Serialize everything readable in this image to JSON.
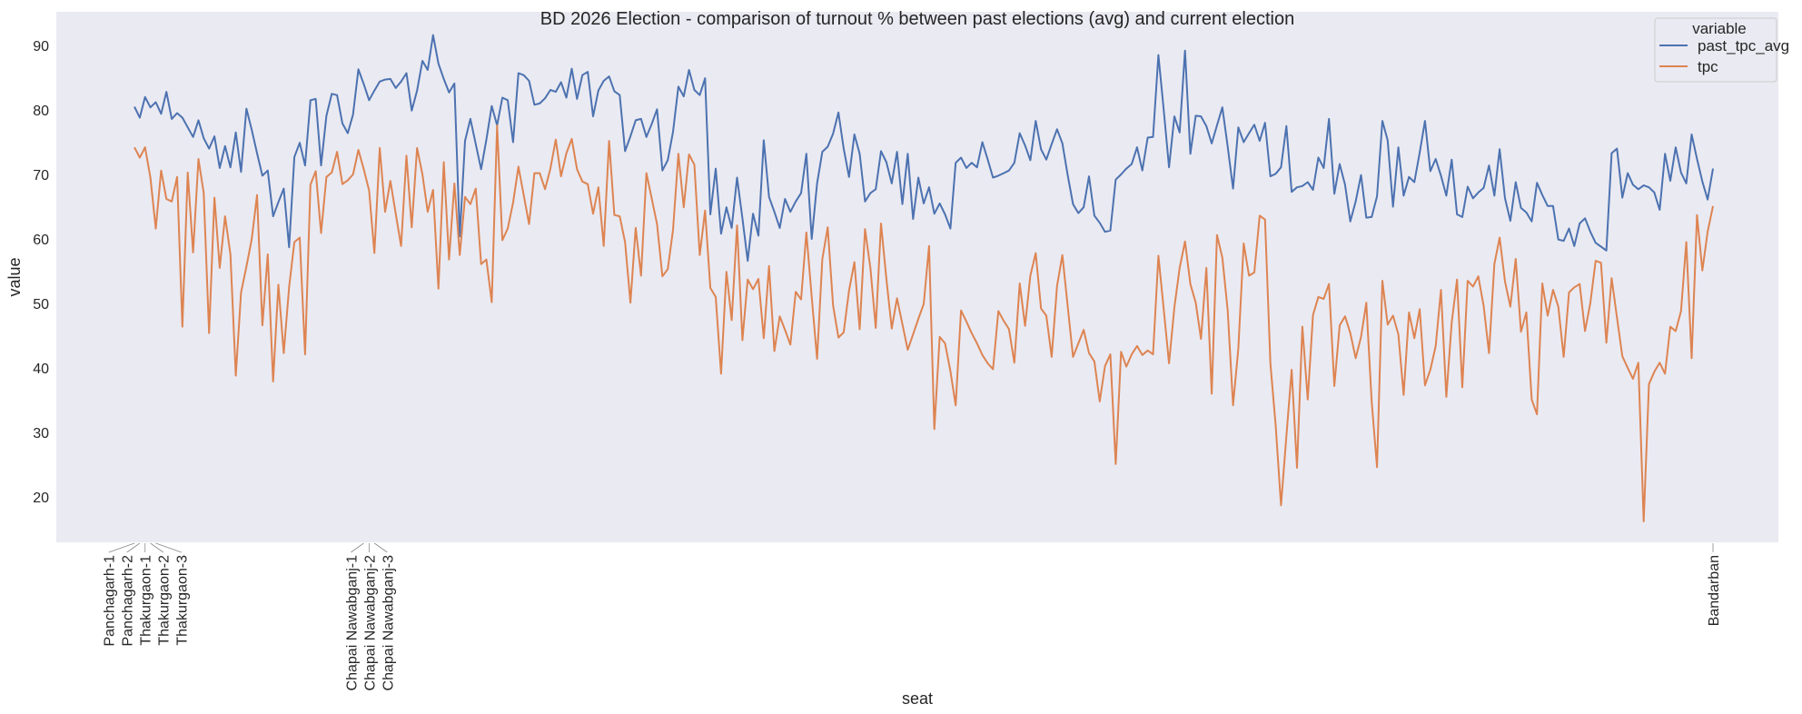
{
  "chart_data": {
    "type": "line",
    "title": "BD 2026 Election - comparison of turnout % between past elections (avg) and current election",
    "xlabel": "seat",
    "ylabel": "value",
    "ylim": [
      13,
      95
    ],
    "yticks": [
      20,
      30,
      40,
      50,
      60,
      70,
      80,
      90
    ],
    "grid": false,
    "background": "#eaeaf2",
    "legend": {
      "title": "variable",
      "placement": "top-right"
    },
    "readable_seat_labels": [
      {
        "index": 0,
        "label": "Panchagarh-1"
      },
      {
        "index": 1,
        "label": "Panchagarh-2"
      },
      {
        "index": 2,
        "label": "Thakurgaon-1"
      },
      {
        "index": 3,
        "label": "Thakurgaon-2"
      },
      {
        "index": 4,
        "label": "Thakurgaon-3"
      },
      {
        "index": 43,
        "label": "Chapai Nawabganj-1"
      },
      {
        "index": 44,
        "label": "Chapai Nawabganj-2"
      },
      {
        "index": 45,
        "label": "Chapai Nawabganj-3"
      },
      {
        "index": 296,
        "label": "Bandarban"
      }
    ],
    "series": [
      {
        "name": "past_tpc_avg",
        "color": "#4c72b0",
        "values": [
          80.5,
          78.8,
          82,
          80.4,
          81.2,
          79.4,
          82.8,
          78.6,
          79.5,
          78.8,
          77.3,
          75.8,
          78.4,
          75.6,
          74,
          75.9,
          71,
          74.4,
          71.1,
          76.5,
          70.4,
          80.2,
          76.9,
          73.3,
          69.8,
          70.6,
          63.5,
          65.7,
          67.8,
          58.7,
          72.7,
          74.9,
          71.4,
          81.5,
          81.7,
          71.4,
          79.1,
          82.5,
          82.3,
          77.9,
          76.4,
          79.3,
          86.3,
          84,
          81.5,
          83,
          84.4,
          84.7,
          84.8,
          83.4,
          84.4,
          85.7,
          79.9,
          83,
          87.6,
          86.2,
          91.6,
          87.2,
          84.8,
          82.7,
          84.1,
          60.4,
          75.2,
          78.6,
          74.7,
          70.8,
          75.4,
          80.6,
          77.6,
          81.9,
          81.5,
          75,
          85.7,
          85.4,
          84.5,
          80.8,
          81,
          81.8,
          83.1,
          82.8,
          84.3,
          81.9,
          86.4,
          81.7,
          85.4,
          85.9,
          79,
          83,
          84.5,
          85.2,
          82.9,
          82.3,
          73.6,
          75.9,
          78.4,
          78.6,
          75.8,
          77.8,
          80.1,
          70.6,
          72.2,
          76.6,
          83.6,
          82.1,
          86.2,
          83.1,
          82.3,
          84.9,
          63.8,
          70.9,
          60.8,
          64.9,
          61.7,
          69.5,
          63.2,
          56.6,
          63.9,
          60.5,
          75.3,
          66.5,
          64.2,
          61.7,
          66.2,
          64.2,
          65.8,
          67.1,
          73.2,
          60,
          68.6,
          73.5,
          74.3,
          76.3,
          79.6,
          74,
          69.6,
          76.2,
          73.2,
          65.8,
          67.1,
          67.7,
          73.6,
          71.9,
          68.6,
          73.5,
          65.4,
          73.2,
          63.1,
          69.5,
          65.5,
          68,
          63.9,
          65.5,
          63.8,
          61.6,
          71.8,
          72.6,
          71,
          71.8,
          71.1,
          75,
          72.3,
          69.5,
          69.8,
          70.2,
          70.6,
          71.8,
          76.4,
          74.5,
          72.2,
          78.3,
          73.9,
          72.3,
          74.7,
          77,
          74.8,
          69.9,
          65.4,
          64,
          64.9,
          69.7,
          63.6,
          62.5,
          61.1,
          61.3,
          69.2,
          70,
          70.9,
          71.6,
          74.2,
          70.6,
          75.7,
          75.8,
          88.5,
          80.1,
          71.1,
          79,
          76.5,
          89.2,
          73.2,
          79.1,
          79,
          77.5,
          74.8,
          77.6,
          80.4,
          74.3,
          67.8,
          77.3,
          75,
          76.4,
          77.7,
          75.2,
          78,
          69.7,
          70.1,
          71.1,
          77.5,
          67.3,
          68,
          68.2,
          68.8,
          67.6,
          72.6,
          71,
          78.6,
          67,
          71.6,
          68.4,
          62.7,
          65.8,
          69.9,
          63.3,
          63.4,
          66.6,
          78.3,
          75.3,
          65,
          74.2,
          66.7,
          69.6,
          68.8,
          73.4,
          78.3,
          70.5,
          72.4,
          69.8,
          66.7,
          72.3,
          63.8,
          63.4,
          68.1,
          66.3,
          67.2,
          67.9,
          71.4,
          66.7,
          73.9,
          66.3,
          62.8,
          68.8,
          64.8,
          64.1,
          62.7,
          68.7,
          66.8,
          65.1,
          65.1,
          59.9,
          59.7,
          61.6,
          58.9,
          62.4,
          63.2,
          61.1,
          59.4,
          58.8,
          58.2,
          73.3,
          74,
          66.4,
          70.2,
          68.4,
          67.7,
          68.3,
          68,
          67.2,
          64.5,
          73.2,
          69,
          74.2,
          70.3,
          68.6,
          76.2,
          72.4,
          68.9,
          66.1,
          70.9
        ]
      },
      {
        "name": "tpc",
        "color": "#dd8452",
        "values": [
          74.2,
          72.6,
          74.2,
          69.5,
          61.6,
          70.6,
          66.2,
          65.8,
          69.6,
          46.4,
          70.3,
          57.9,
          72.4,
          67.1,
          45.4,
          66.4,
          55.5,
          63.5,
          57.6,
          38.8,
          51.7,
          55.7,
          60,
          66.8,
          46.6,
          57.6,
          37.9,
          52.9,
          42.3,
          52.5,
          59.5,
          60.2,
          42.1,
          68.4,
          70.5,
          60.9,
          69.6,
          70.3,
          73.5,
          68.5,
          69.1,
          70,
          73.8,
          70.8,
          67.5,
          57.8,
          74.1,
          64.2,
          69,
          63.9,
          58.9,
          72.9,
          61.8,
          74.1,
          70,
          64.2,
          67.6,
          52.3,
          71.9,
          56.8,
          68.6,
          57.5,
          66.5,
          65.4,
          67.8,
          56.1,
          56.8,
          50.2,
          77.6,
          59.8,
          61.6,
          65.6,
          71.2,
          66.8,
          62.3,
          70.2,
          70.2,
          67.7,
          70.9,
          75.4,
          69.7,
          73.3,
          75.5,
          70.8,
          68.9,
          68.5,
          63.9,
          68,
          58.9,
          75.2,
          63.7,
          63.5,
          59.5,
          50.1,
          61.7,
          54.3,
          70.2,
          66.3,
          62.3,
          54.2,
          55.3,
          61.4,
          73.2,
          64.9,
          73.1,
          71.5,
          57.5,
          64.4,
          52.4,
          51,
          39.1,
          54.9,
          47.4,
          62.1,
          44.3,
          53.7,
          52.2,
          53.8,
          44.6,
          55.8,
          42.6,
          48,
          45.9,
          43.6,
          51.8,
          50.6,
          61,
          51,
          41.4,
          56.9,
          61.8,
          49.7,
          44.7,
          45.5,
          52,
          56.4,
          46,
          61.5,
          55.5,
          46.2,
          62.4,
          53.8,
          46.1,
          50.8,
          46.8,
          42.8,
          45.2,
          47.6,
          49.9,
          58.9,
          30.5,
          44.8,
          43.8,
          39.5,
          34.2,
          48.9,
          47.2,
          45.4,
          43.8,
          42,
          40.7,
          39.8,
          48.8,
          47.3,
          46,
          40.8,
          53.1,
          46.5,
          54.3,
          57.8,
          49.2,
          48.1,
          41.7,
          52.7,
          57.5,
          49.6,
          41.7,
          43.8,
          45.9,
          42.3,
          41,
          34.8,
          40.3,
          42.1,
          25.1,
          42.5,
          40.2,
          42.1,
          43.4,
          42,
          42.7,
          42.1,
          57.4,
          49.2,
          40.7,
          49.4,
          55.5,
          59.6,
          53,
          50.1,
          44.5,
          55.5,
          36,
          60.6,
          57.1,
          48.9,
          34.2,
          43,
          59.3,
          54.3,
          54.8,
          63.6,
          63,
          40.7,
          31.1,
          18.7,
          29.4,
          39.7,
          24.5,
          46.4,
          35.1,
          48.2,
          51,
          50.7,
          53,
          37.2,
          46.6,
          48,
          45.4,
          41.5,
          44.8,
          50.1,
          34.8,
          24.6,
          53.5,
          46.7,
          48.1,
          45.2,
          35.8,
          48.6,
          44.6,
          49.1,
          37.3,
          39.7,
          43.4,
          52.1,
          35.5,
          47,
          53.7,
          37,
          53.5,
          52.6,
          54.2,
          49.6,
          42.3,
          56.1,
          60.2,
          53.4,
          49.5,
          56.9,
          45.6,
          48.6,
          35.1,
          32.8,
          53.1,
          48.1,
          52.1,
          49.5,
          41.7,
          51.7,
          52.5,
          53,
          45.7,
          50.1,
          56.6,
          56.3,
          43.9,
          53.9,
          47.8,
          41.8,
          40,
          38.3,
          40.8,
          16.2,
          37.5,
          39.4,
          40.8,
          39.1,
          46.4,
          45.7,
          48.8,
          59.5,
          41.5,
          63.7,
          55.1,
          61.1,
          65.1
        ]
      }
    ]
  }
}
